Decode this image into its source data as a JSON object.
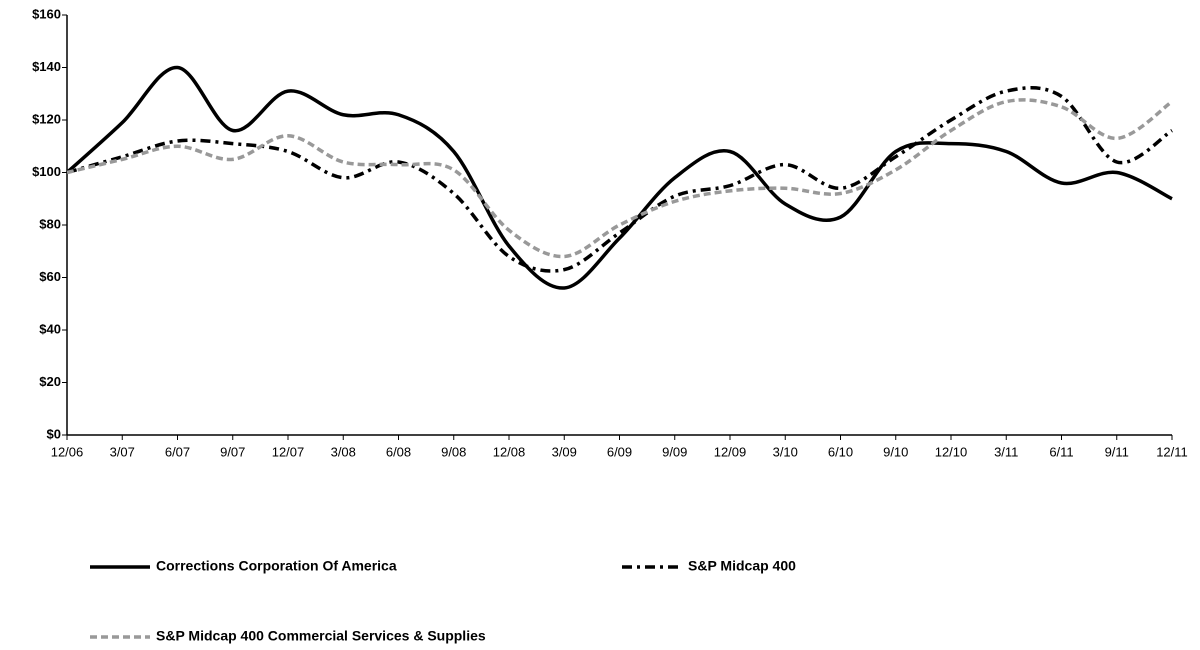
{
  "chart_data": {
    "type": "line",
    "categories": [
      "12/06",
      "3/07",
      "6/07",
      "9/07",
      "12/07",
      "3/08",
      "6/08",
      "9/08",
      "12/08",
      "3/09",
      "6/09",
      "9/09",
      "12/09",
      "3/10",
      "6/10",
      "9/10",
      "12/10",
      "3/11",
      "6/11",
      "9/11",
      "12/11"
    ],
    "series": [
      {
        "name": "Corrections Corporation Of America",
        "color": "#000000",
        "dash": "solid",
        "values": [
          100,
          119,
          140,
          116,
          131,
          122,
          122,
          108,
          72,
          56,
          75,
          98,
          108,
          88,
          83,
          108,
          111,
          108,
          96,
          100,
          90
        ]
      },
      {
        "name": "S&P Midcap 400",
        "color": "#000000",
        "dash": "dashdot",
        "values": [
          100,
          106,
          112,
          111,
          108,
          98,
          104,
          92,
          68,
          63,
          77,
          91,
          95,
          103,
          94,
          106,
          120,
          131,
          129,
          104,
          116
        ]
      },
      {
        "name": "S&P Midcap 400 Commercial Services & Supplies",
        "color": "#999999",
        "dash": "dashed",
        "values": [
          100,
          105,
          110,
          105,
          114,
          104,
          103,
          101,
          78,
          68,
          80,
          89,
          93,
          94,
          92,
          101,
          116,
          127,
          125,
          113,
          127
        ]
      }
    ],
    "ylim": [
      0,
      160
    ],
    "yticks": [
      {
        "value": 0,
        "label": "$0"
      },
      {
        "value": 20,
        "label": "$20"
      },
      {
        "value": 40,
        "label": "$40"
      },
      {
        "value": 60,
        "label": "$60"
      },
      {
        "value": 80,
        "label": "$80"
      },
      {
        "value": 100,
        "label": "$100"
      },
      {
        "value": 120,
        "label": "$120"
      },
      {
        "value": 140,
        "label": "$140"
      },
      {
        "value": 160,
        "label": "$160"
      }
    ],
    "grid": false
  }
}
